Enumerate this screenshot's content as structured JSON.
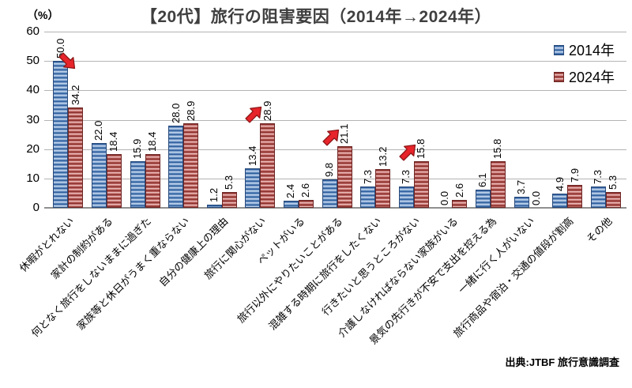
{
  "title": "【20代】旅行の阻害要因（2014年→2024年）",
  "y_axis_unit": "（%）",
  "source": "出典:JTBF 旅行意識調査",
  "legend": [
    {
      "label": "2014年",
      "color": "#4F81BD"
    },
    {
      "label": "2024年",
      "color": "#C0504D"
    }
  ],
  "chart_data": {
    "type": "bar",
    "title": "【20代】旅行の阻害要因（2014年→2024年）",
    "ylabel": "（%）",
    "ylim": [
      0,
      60
    ],
    "ytick_step": 10,
    "grid": true,
    "legend_position": "top-right",
    "categories": [
      "休暇がとれない",
      "家計の制約がある",
      "何となく旅行をしないままに過ぎた",
      "家族等と休日がうまく重ならない",
      "自分の健康上の理由",
      "旅行に関心がない",
      "ペットがいる",
      "旅行以外にやりたいことがある",
      "混雑する時期に旅行をしたくない",
      "行きたいと思うところがない",
      "介護しなければならない家族がいる",
      "景気の先行きが不安で支出を控える為",
      "一緒に行く人がいない",
      "旅行商品や宿泊・交通の値段が割高",
      "その他"
    ],
    "series": [
      {
        "name": "2014年",
        "color": "#4F81BD",
        "values": [
          50.0,
          22.0,
          15.9,
          28.0,
          1.2,
          13.4,
          2.4,
          9.8,
          7.3,
          7.3,
          0.0,
          6.1,
          3.7,
          4.9,
          7.3
        ]
      },
      {
        "name": "2024年",
        "color": "#C0504D",
        "values": [
          34.2,
          18.4,
          18.4,
          28.9,
          5.3,
          28.9,
          2.6,
          21.1,
          13.2,
          15.8,
          2.6,
          15.8,
          0.0,
          7.9,
          5.3
        ]
      }
    ],
    "annotations": {
      "arrows": [
        {
          "category_index": 0,
          "direction": "down",
          "color": "#e8242b"
        },
        {
          "category_index": 5,
          "direction": "up",
          "color": "#e8242b"
        },
        {
          "category_index": 7,
          "direction": "up",
          "color": "#e8242b"
        },
        {
          "category_index": 9,
          "direction": "up",
          "color": "#e8242b"
        }
      ]
    }
  }
}
